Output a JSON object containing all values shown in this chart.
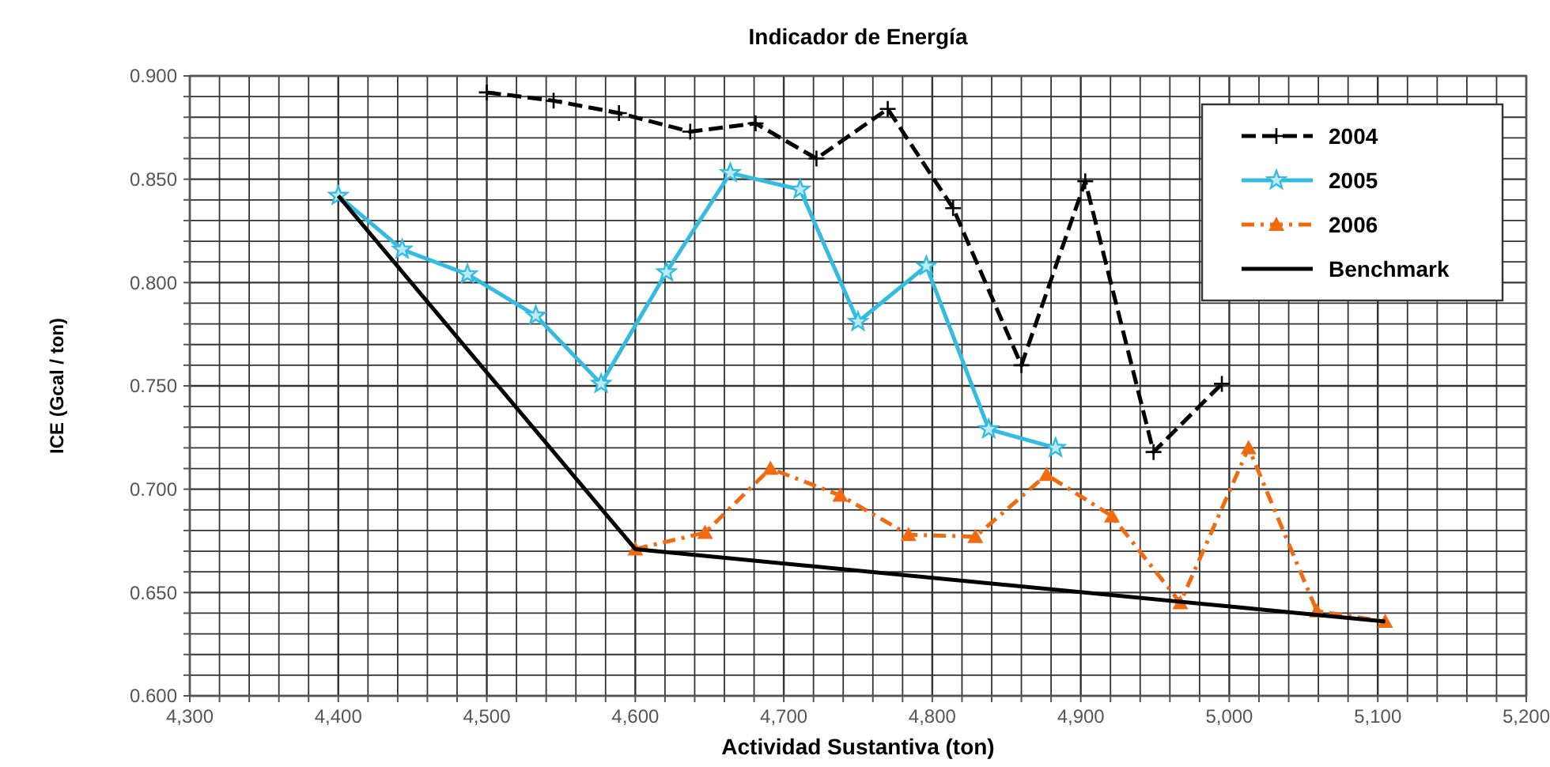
{
  "chart_data": {
    "type": "line",
    "title": "Indicador de Energía",
    "xlabel": "Actividad Sustantiva (ton)",
    "ylabel": "ICE  (Gcal / ton)",
    "xlim": [
      4300,
      5200
    ],
    "xticks": [
      {
        "value": 4300,
        "label": "4,300"
      },
      {
        "value": 4320,
        "label": null
      },
      {
        "value": 4340,
        "label": null
      },
      {
        "value": 4360,
        "label": null
      },
      {
        "value": 4380,
        "label": null
      },
      {
        "value": 4400,
        "label": "4,400"
      },
      {
        "value": 4420,
        "label": null
      },
      {
        "value": 4440,
        "label": null
      },
      {
        "value": 4460,
        "label": null
      },
      {
        "value": 4480,
        "label": null
      },
      {
        "value": 4500,
        "label": "4,500"
      },
      {
        "value": 4520,
        "label": null
      },
      {
        "value": 4540,
        "label": null
      },
      {
        "value": 4560,
        "label": null
      },
      {
        "value": 4580,
        "label": null
      },
      {
        "value": 4600,
        "label": "4,600"
      },
      {
        "value": 4620,
        "label": null
      },
      {
        "value": 4640,
        "label": null
      },
      {
        "value": 4660,
        "label": null
      },
      {
        "value": 4680,
        "label": null
      },
      {
        "value": 4700,
        "label": "4,700"
      },
      {
        "value": 4720,
        "label": null
      },
      {
        "value": 4740,
        "label": null
      },
      {
        "value": 4760,
        "label": null
      },
      {
        "value": 4780,
        "label": null
      },
      {
        "value": 4800,
        "label": "4,800"
      },
      {
        "value": 4820,
        "label": null
      },
      {
        "value": 4840,
        "label": null
      },
      {
        "value": 4860,
        "label": null
      },
      {
        "value": 4880,
        "label": null
      },
      {
        "value": 4900,
        "label": "4,900"
      },
      {
        "value": 4920,
        "label": null
      },
      {
        "value": 4940,
        "label": null
      },
      {
        "value": 4960,
        "label": null
      },
      {
        "value": 4980,
        "label": null
      },
      {
        "value": 5000,
        "label": "5,000"
      },
      {
        "value": 5020,
        "label": null
      },
      {
        "value": 5040,
        "label": null
      },
      {
        "value": 5060,
        "label": null
      },
      {
        "value": 5080,
        "label": null
      },
      {
        "value": 5100,
        "label": "5,100"
      },
      {
        "value": 5120,
        "label": null
      },
      {
        "value": 5140,
        "label": null
      },
      {
        "value": 5160,
        "label": null
      },
      {
        "value": 5180,
        "label": null
      },
      {
        "value": 5200,
        "label": "5,200"
      }
    ],
    "ylim": [
      0.6,
      0.9
    ],
    "yticks": [
      {
        "value": 0.6,
        "label": "0.600"
      },
      {
        "value": 0.61,
        "label": null
      },
      {
        "value": 0.62,
        "label": null
      },
      {
        "value": 0.63,
        "label": null
      },
      {
        "value": 0.64,
        "label": null
      },
      {
        "value": 0.65,
        "label": "0.650"
      },
      {
        "value": 0.66,
        "label": null
      },
      {
        "value": 0.67,
        "label": null
      },
      {
        "value": 0.68,
        "label": null
      },
      {
        "value": 0.69,
        "label": null
      },
      {
        "value": 0.7,
        "label": "0.700"
      },
      {
        "value": 0.71,
        "label": null
      },
      {
        "value": 0.72,
        "label": null
      },
      {
        "value": 0.73,
        "label": null
      },
      {
        "value": 0.74,
        "label": null
      },
      {
        "value": 0.75,
        "label": "0.750"
      },
      {
        "value": 0.76,
        "label": null
      },
      {
        "value": 0.77,
        "label": null
      },
      {
        "value": 0.78,
        "label": null
      },
      {
        "value": 0.79,
        "label": null
      },
      {
        "value": 0.8,
        "label": "0.800"
      },
      {
        "value": 0.81,
        "label": null
      },
      {
        "value": 0.82,
        "label": null
      },
      {
        "value": 0.83,
        "label": null
      },
      {
        "value": 0.84,
        "label": null
      },
      {
        "value": 0.85,
        "label": "0.850"
      },
      {
        "value": 0.86,
        "label": null
      },
      {
        "value": 0.87,
        "label": null
      },
      {
        "value": 0.88,
        "label": null
      },
      {
        "value": 0.89,
        "label": null
      },
      {
        "value": 0.9,
        "label": "0.900"
      }
    ],
    "grid": true,
    "legend": "top right",
    "series": [
      {
        "name": "2004",
        "color": "#000000",
        "marker": "cross",
        "line_style": "dashed",
        "x": [
          4500,
          4545,
          4589,
          4637,
          4681,
          4722,
          4770,
          4814,
          4860,
          4903,
          4949,
          4995
        ],
        "values": [
          0.892,
          0.888,
          0.882,
          0.873,
          0.877,
          0.86,
          0.884,
          0.836,
          0.76,
          0.849,
          0.718,
          0.751
        ]
      },
      {
        "name": "2005",
        "color": "#33bbe0",
        "marker": "star",
        "line_style": "solid",
        "x": [
          4400,
          4443,
          4487,
          4533,
          4577,
          4621,
          4664,
          4711,
          4750,
          4796,
          4838,
          4883
        ],
        "values": [
          0.842,
          0.816,
          0.804,
          0.784,
          0.751,
          0.805,
          0.853,
          0.845,
          0.781,
          0.808,
          0.729,
          0.72
        ]
      },
      {
        "name": "2006",
        "color": "#f26a10",
        "marker": "triangle",
        "line_style": "dashdot",
        "x": [
          4600,
          4647,
          4691,
          4738,
          4784,
          4829,
          4877,
          4921,
          4967,
          5013,
          5059,
          5105
        ],
        "values": [
          0.671,
          0.679,
          0.71,
          0.697,
          0.678,
          0.677,
          0.707,
          0.687,
          0.645,
          0.72,
          0.641,
          0.636
        ]
      },
      {
        "name": "Benchmark",
        "color": "#000000",
        "marker": "none",
        "line_style": "solid",
        "x": [
          4400,
          4600,
          5105
        ],
        "values": [
          0.842,
          0.671,
          0.636
        ]
      }
    ]
  }
}
